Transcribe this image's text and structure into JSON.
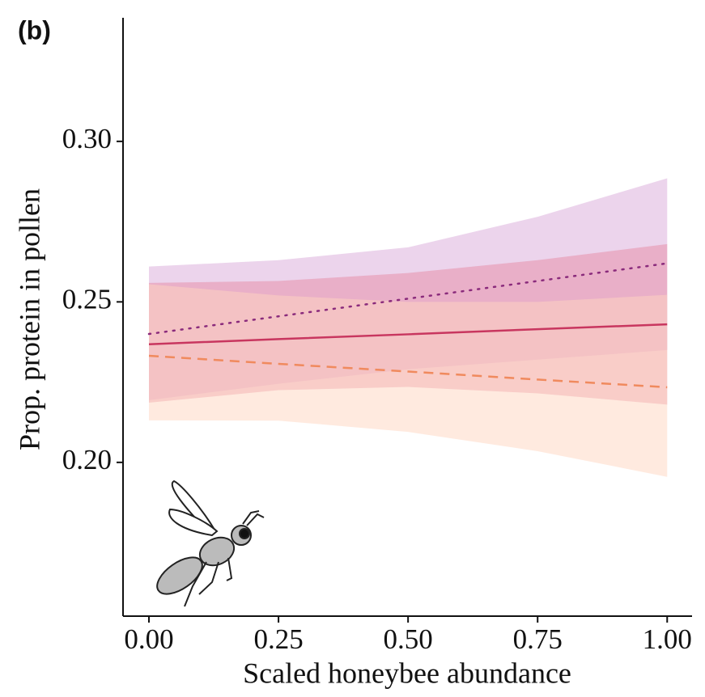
{
  "chart_data": {
    "type": "ribbon-line",
    "panel_label": "(b)",
    "x_label": "Scaled honeybee abundance",
    "y_label": "Prop. protein in pollen",
    "x": [
      0,
      0.25,
      0.5,
      0.75,
      1
    ],
    "series": [
      {
        "color": "#8a2b7c",
        "fill": "#d9a9d9",
        "dash": "dotted",
        "values": [
          0.24,
          0.2455,
          0.251,
          0.2565,
          0.262
        ],
        "lower": [
          0.2194,
          0.2245,
          0.229,
          0.232,
          0.235
        ],
        "upper": [
          0.261,
          0.263,
          0.267,
          0.2765,
          0.2885
        ]
      },
      {
        "color": "#c8365f",
        "fill": "#e68aa4",
        "dash": "solid",
        "values": [
          0.2368,
          0.2384,
          0.2399,
          0.2415,
          0.243
        ],
        "lower": [
          0.2186,
          0.2225,
          0.2235,
          0.2215,
          0.218
        ],
        "upper": [
          0.2559,
          0.2565,
          0.259,
          0.263,
          0.268
        ]
      },
      {
        "color": "#f08a5e",
        "fill": "#ffd6bf",
        "dash": "dashed",
        "values": [
          0.2332,
          0.2307,
          0.2283,
          0.2258,
          0.2234
        ],
        "lower": [
          0.2131,
          0.213,
          0.2095,
          0.2035,
          0.1955
        ],
        "upper": [
          0.2555,
          0.252,
          0.25,
          0.25,
          0.2522
        ]
      }
    ],
    "xlim": [
      -0.05,
      1.048
    ],
    "ylim": [
      0.1521,
      0.3385
    ],
    "xticks": [
      {
        "value": 0,
        "label": "0.00"
      },
      {
        "value": 0.25,
        "label": "0.25"
      },
      {
        "value": 0.5,
        "label": "0.50"
      },
      {
        "value": 0.75,
        "label": "0.75"
      },
      {
        "value": 1,
        "label": "1.00"
      }
    ],
    "yticks": [
      {
        "value": 0.2,
        "label": "0.20"
      },
      {
        "value": 0.25,
        "label": "0.25"
      },
      {
        "value": 0.3,
        "label": "0.30"
      }
    ]
  }
}
